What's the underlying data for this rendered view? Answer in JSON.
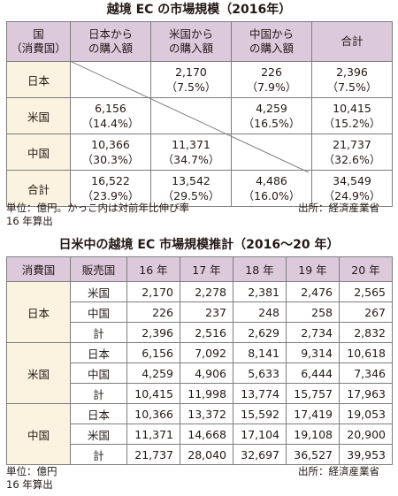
{
  "table1": {
    "title": "越境 EC の市場規模（2016年）",
    "headers": {
      "corner_line1": "国",
      "corner_line2": "（消費国）",
      "col1_line1": "日本から",
      "col1_line2": "の購入額",
      "col2_line1": "米国から",
      "col2_line2": "の購入額",
      "col3_line1": "中国から",
      "col3_line2": "の購入額",
      "col4": "合計"
    },
    "rows": [
      {
        "label": "日本",
        "cells": [
          {
            "v": "",
            "p": ""
          },
          {
            "v": "2,170",
            "p": "（7.5%）"
          },
          {
            "v": "226",
            "p": "（7.9%）"
          },
          {
            "v": "2,396",
            "p": "（7.5%）"
          }
        ]
      },
      {
        "label": "米国",
        "cells": [
          {
            "v": "6,156",
            "p": "（14.4%）"
          },
          {
            "v": "",
            "p": ""
          },
          {
            "v": "4,259",
            "p": "（16.5%）"
          },
          {
            "v": "10,415",
            "p": "（15.2%）"
          }
        ]
      },
      {
        "label": "中国",
        "cells": [
          {
            "v": "10,366",
            "p": "（30.3%）"
          },
          {
            "v": "11,371",
            "p": "（34.7%）"
          },
          {
            "v": "",
            "p": ""
          },
          {
            "v": "21,737",
            "p": "（32.6%）"
          }
        ]
      },
      {
        "label": "合計",
        "cells": [
          {
            "v": "16,522",
            "p": "（23.9%）"
          },
          {
            "v": "13,542",
            "p": "（29.5%）"
          },
          {
            "v": "4,486",
            "p": "（16.0%）"
          },
          {
            "v": "34,549",
            "p": "（24.9%）"
          }
        ]
      }
    ],
    "note_left_line1": "単位：億円。かっこ内は対前年比伸び率",
    "note_left_line2": "16 年算出",
    "note_right": "出所：経済産業省"
  },
  "table2": {
    "title": "日米中の越境 EC 市場規模推計（2016～20 年）",
    "headers": [
      "消費国",
      "販売国",
      "16 年",
      "17 年",
      "18 年",
      "19 年",
      "20 年"
    ],
    "groups": [
      {
        "consumer": "日本",
        "rows": [
          {
            "seller": "米国",
            "values": [
              "2,170",
              "2,278",
              "2,381",
              "2,476",
              "2,565"
            ]
          },
          {
            "seller": "中国",
            "values": [
              "226",
              "237",
              "248",
              "258",
              "267"
            ]
          },
          {
            "seller": "計",
            "values": [
              "2,396",
              "2,516",
              "2,629",
              "2,734",
              "2,832"
            ]
          }
        ]
      },
      {
        "consumer": "米国",
        "rows": [
          {
            "seller": "日本",
            "values": [
              "6,156",
              "7,092",
              "8,141",
              "9,314",
              "10,618"
            ]
          },
          {
            "seller": "中国",
            "values": [
              "4,259",
              "4,906",
              "5,633",
              "6,444",
              "7,346"
            ]
          },
          {
            "seller": "計",
            "values": [
              "10,415",
              "11,998",
              "13,774",
              "15,757",
              "17,963"
            ]
          }
        ]
      },
      {
        "consumer": "中国",
        "rows": [
          {
            "seller": "日本",
            "values": [
              "10,366",
              "13,372",
              "15,592",
              "17,419",
              "19,053"
            ]
          },
          {
            "seller": "米国",
            "values": [
              "11,371",
              "14,668",
              "17,104",
              "19,108",
              "20,900"
            ]
          },
          {
            "seller": "計",
            "values": [
              "21,737",
              "28,040",
              "32,697",
              "36,527",
              "39,953"
            ]
          }
        ]
      }
    ],
    "note_left_line1": "単位：億円",
    "note_left_line2": "16 年算出",
    "note_right": "出所：経済産業省"
  }
}
